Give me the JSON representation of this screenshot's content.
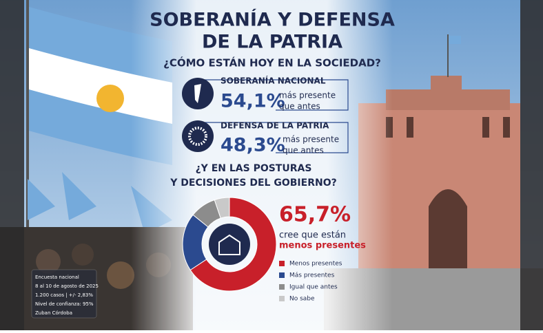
{
  "header": {
    "title_lines": [
      "SOBERANÍA Y DEFENSA",
      "DE LA PATRIA"
    ],
    "subtitle": "¿CÓMO ESTÁN HOY EN LA SOCIEDAD?"
  },
  "stats": [
    {
      "label": "SOBERANÍA NACIONAL",
      "value": "54,1%",
      "note_lines": [
        "más presente",
        "que antes"
      ]
    },
    {
      "label": "DEFENSA DE LA PATRIA",
      "value": "48,3%",
      "note_lines": [
        "más presente",
        "que antes"
      ]
    }
  ],
  "question_lines": [
    "¿Y EN LAS POSTURAS",
    "Y DECISIONES DEL GOBIERNO?"
  ],
  "chart_data": {
    "type": "donut",
    "categories": [
      "Menos presentes",
      "Más presentes",
      "Igual que antes",
      "No sabe"
    ],
    "values": [
      65.7,
      20.1,
      9.0,
      5.2
    ],
    "colors": [
      "#c8202a",
      "#2b4a8f",
      "#8c8c8c",
      "#c9c9c9"
    ],
    "value_labels": [
      "65,7%",
      null,
      null,
      null
    ]
  },
  "highlight_lines": [
    "cree que están",
    "menos presentes"
  ],
  "footnote_lines": [
    "Encuesta nacional",
    "8 al 10 de agosto de 2025",
    "1.200 casos | +/- 2,83%",
    "Nivel de confianza: 95%",
    "Zuban Córdoba"
  ]
}
